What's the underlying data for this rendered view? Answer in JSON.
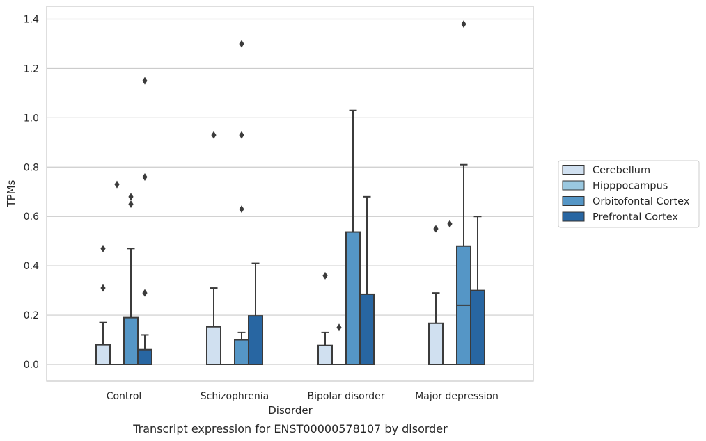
{
  "chart_data": {
    "type": "box",
    "caption": "Transcript expression for ENST00000578107 by disorder",
    "xlabel": "Disorder",
    "ylabel": "TPMs",
    "ylim": [
      -0.065,
      1.45
    ],
    "yticks": [
      0.0,
      0.2,
      0.4,
      0.6,
      0.8,
      1.0,
      1.2,
      1.4
    ],
    "ytick_labels": [
      "0.0",
      "0.2",
      "0.4",
      "0.6",
      "0.8",
      "1.0",
      "1.2",
      "1.4"
    ],
    "grid": "horizontal",
    "legend_position": "right",
    "categories": [
      "Control",
      "Schizophrenia",
      "Bipolar disorder",
      "Major depression"
    ],
    "series": [
      {
        "name": "Cerebellum",
        "color": "#d0e0f0",
        "boxes": [
          {
            "q1": 0,
            "median": 0,
            "q3": 0.08,
            "whisker_low": 0,
            "whisker_high": 0.17,
            "outliers": [
              0.31,
              0.47
            ]
          },
          {
            "q1": 0,
            "median": 0,
            "q3": 0.153,
            "whisker_low": 0,
            "whisker_high": 0.31,
            "outliers": [
              0.93
            ]
          },
          {
            "q1": 0,
            "median": 0,
            "q3": 0.077,
            "whisker_low": 0,
            "whisker_high": 0.13,
            "outliers": [
              0.36
            ]
          },
          {
            "q1": 0,
            "median": 0,
            "q3": 0.167,
            "whisker_low": 0,
            "whisker_high": 0.29,
            "outliers": [
              0.55
            ]
          }
        ]
      },
      {
        "name": "Hipppocampus",
        "color": "#9ac8e0",
        "boxes": [
          {
            "q1": 0,
            "median": 0,
            "q3": 0,
            "whisker_low": 0,
            "whisker_high": 0,
            "outliers": [
              0.73
            ]
          },
          {
            "q1": 0,
            "median": 0,
            "q3": 0,
            "whisker_low": 0,
            "whisker_high": 0,
            "outliers": []
          },
          {
            "q1": 0,
            "median": 0,
            "q3": 0,
            "whisker_low": 0,
            "whisker_high": 0,
            "outliers": [
              0.15
            ]
          },
          {
            "q1": 0,
            "median": 0,
            "q3": 0,
            "whisker_low": 0,
            "whisker_high": 0,
            "outliers": [
              0.57
            ]
          }
        ]
      },
      {
        "name": "Orbitofontal Cortex",
        "color": "#5596c6",
        "boxes": [
          {
            "q1": 0,
            "median": 0,
            "q3": 0.19,
            "whisker_low": 0,
            "whisker_high": 0.47,
            "outliers": [
              0.65,
              0.68
            ]
          },
          {
            "q1": 0,
            "median": 0,
            "q3": 0.1,
            "whisker_low": 0,
            "whisker_high": 0.13,
            "outliers": [
              0.63,
              0.93,
              1.3
            ]
          },
          {
            "q1": 0,
            "median": 0,
            "q3": 0.537,
            "whisker_low": 0,
            "whisker_high": 1.03,
            "outliers": []
          },
          {
            "q1": 0,
            "median": 0.24,
            "q3": 0.48,
            "whisker_low": 0,
            "whisker_high": 0.81,
            "outliers": [
              1.38
            ]
          }
        ]
      },
      {
        "name": "Prefrontal Cortex",
        "color": "#2866a2",
        "boxes": [
          {
            "q1": 0,
            "median": 0,
            "q3": 0.06,
            "whisker_low": 0,
            "whisker_high": 0.12,
            "outliers": [
              0.29,
              0.76,
              1.15
            ]
          },
          {
            "q1": 0,
            "median": 0,
            "q3": 0.197,
            "whisker_low": 0,
            "whisker_high": 0.41,
            "outliers": []
          },
          {
            "q1": 0,
            "median": 0,
            "q3": 0.285,
            "whisker_low": 0,
            "whisker_high": 0.68,
            "outliers": []
          },
          {
            "q1": 0,
            "median": 0,
            "q3": 0.3,
            "whisker_low": 0,
            "whisker_high": 0.6,
            "outliers": []
          }
        ]
      }
    ]
  }
}
